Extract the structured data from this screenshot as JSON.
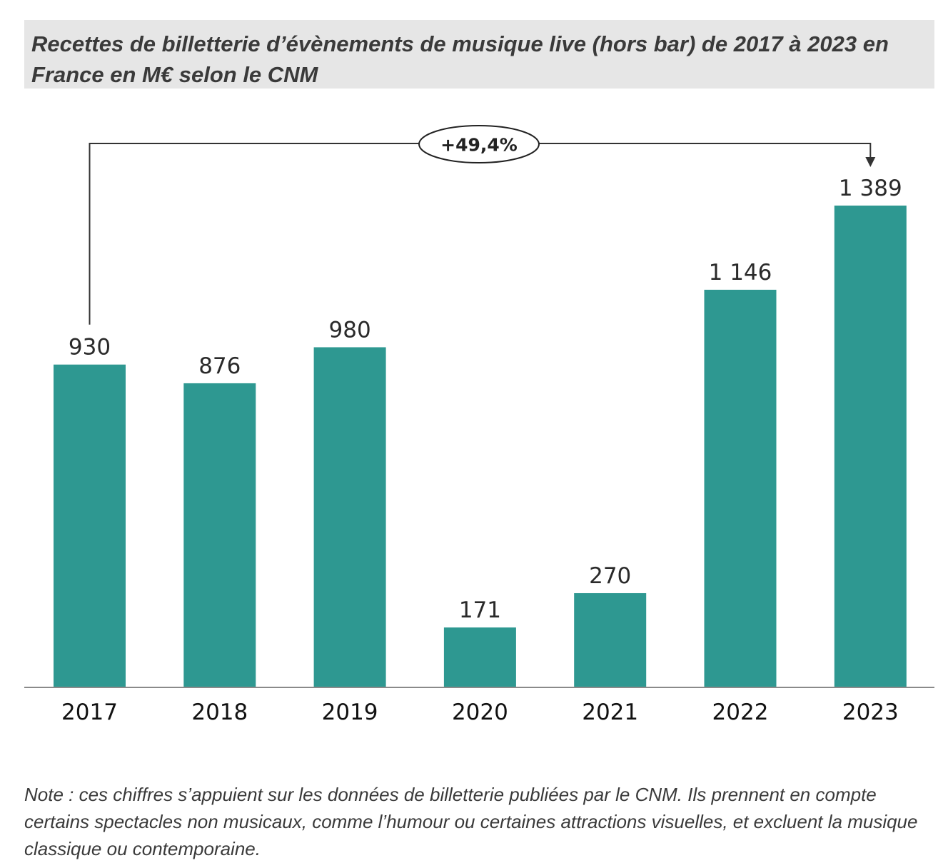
{
  "chart_data": {
    "type": "bar",
    "title": "Recettes de billetterie d’évènements de musique live (hors bar) de 2017 à 2023 en France en M€ selon le CNM",
    "categories": [
      "2017",
      "2018",
      "2019",
      "2020",
      "2021",
      "2022",
      "2023"
    ],
    "values": [
      930,
      876,
      980,
      171,
      270,
      1146,
      1389
    ],
    "value_labels": [
      "930",
      "876",
      "980",
      "171",
      "270",
      "1 146",
      "1 389"
    ],
    "xlabel": "",
    "ylabel": "",
    "ylim": [
      0,
      1389
    ],
    "grid": false,
    "bar_color": "#2e9891",
    "annotation": {
      "label": "+49,4%",
      "from_category": "2017",
      "to_category": "2023"
    }
  },
  "note": "Note : ces chiffres s’appuient sur les données de billetterie publiées par le CNM. Ils prennent en compte certains spectacles non musicaux, comme l’humour ou certaines attractions visuelles, et excluent la musique classique ou contemporaine."
}
